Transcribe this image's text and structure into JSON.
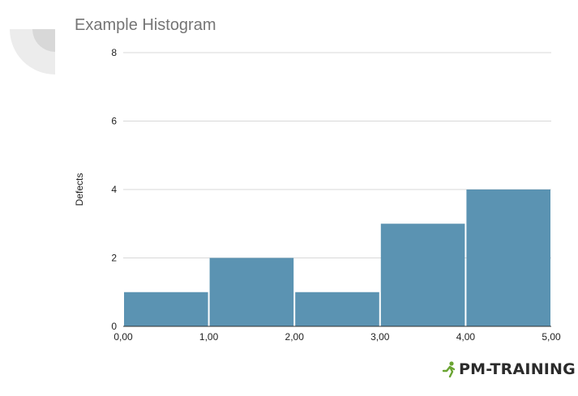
{
  "chart_data": {
    "type": "bar",
    "title": "Example Histogram",
    "xlabel": "",
    "ylabel": "Defects",
    "bins": [
      {
        "start": 0,
        "end": 1,
        "value": 1
      },
      {
        "start": 1,
        "end": 2,
        "value": 2
      },
      {
        "start": 2,
        "end": 3,
        "value": 1
      },
      {
        "start": 3,
        "end": 4,
        "value": 3
      },
      {
        "start": 4,
        "end": 5,
        "value": 4
      }
    ],
    "x_ticks": [
      "0,00",
      "1,00",
      "2,00",
      "3,00",
      "4,00",
      "5,00"
    ],
    "y_ticks": [
      "0",
      "2",
      "4",
      "6",
      "8"
    ],
    "xlim": [
      0,
      5
    ],
    "ylim": [
      0,
      8
    ],
    "grid": true,
    "bar_color": "#5b93b2"
  },
  "brand": {
    "logo_text": "PM-TRAINING",
    "accent": "#6aa432"
  }
}
